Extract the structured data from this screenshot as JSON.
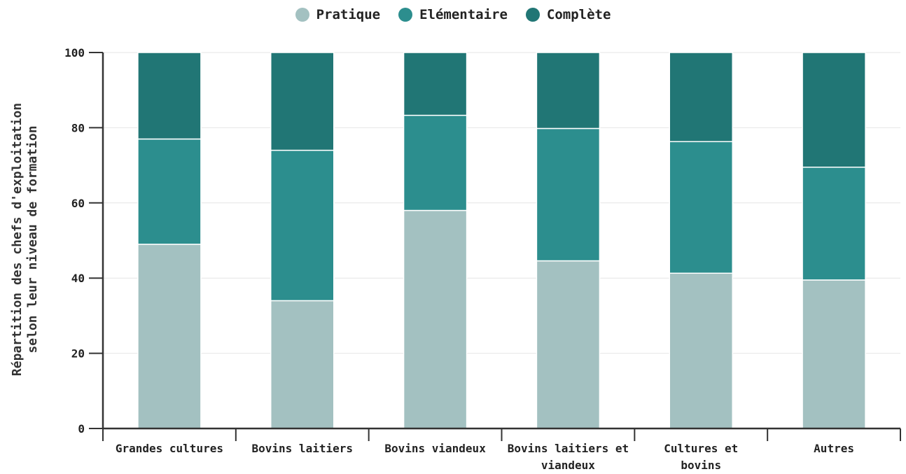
{
  "chart_data": {
    "type": "bar",
    "stacked": true,
    "categories": [
      [
        "Grandes cultures"
      ],
      [
        "Bovins laitiers"
      ],
      [
        "Bovins viandeux"
      ],
      [
        "Bovins laitiers et",
        "viandeux"
      ],
      [
        "Cultures et",
        "bovins"
      ],
      [
        "Autres"
      ]
    ],
    "series": [
      {
        "name": "Pratique",
        "color": "#a3c1c1",
        "values": [
          49,
          34,
          58,
          44.6,
          41.3,
          39.5
        ]
      },
      {
        "name": "Elémentaire",
        "color": "#2c8e8e",
        "values": [
          28,
          40,
          25.3,
          35.2,
          35.0,
          30.0
        ]
      },
      {
        "name": "Complète",
        "color": "#217675",
        "values": [
          23,
          26,
          16.7,
          20.2,
          23.7,
          30.5
        ]
      }
    ],
    "ylabel": [
      "Répartition des chefs d'exploitation",
      "selon leur niveau de formation"
    ],
    "ylim": [
      0,
      100
    ],
    "yticks": [
      0,
      20,
      40,
      60,
      80,
      100
    ],
    "grid": true,
    "legend_position": "top-center"
  }
}
